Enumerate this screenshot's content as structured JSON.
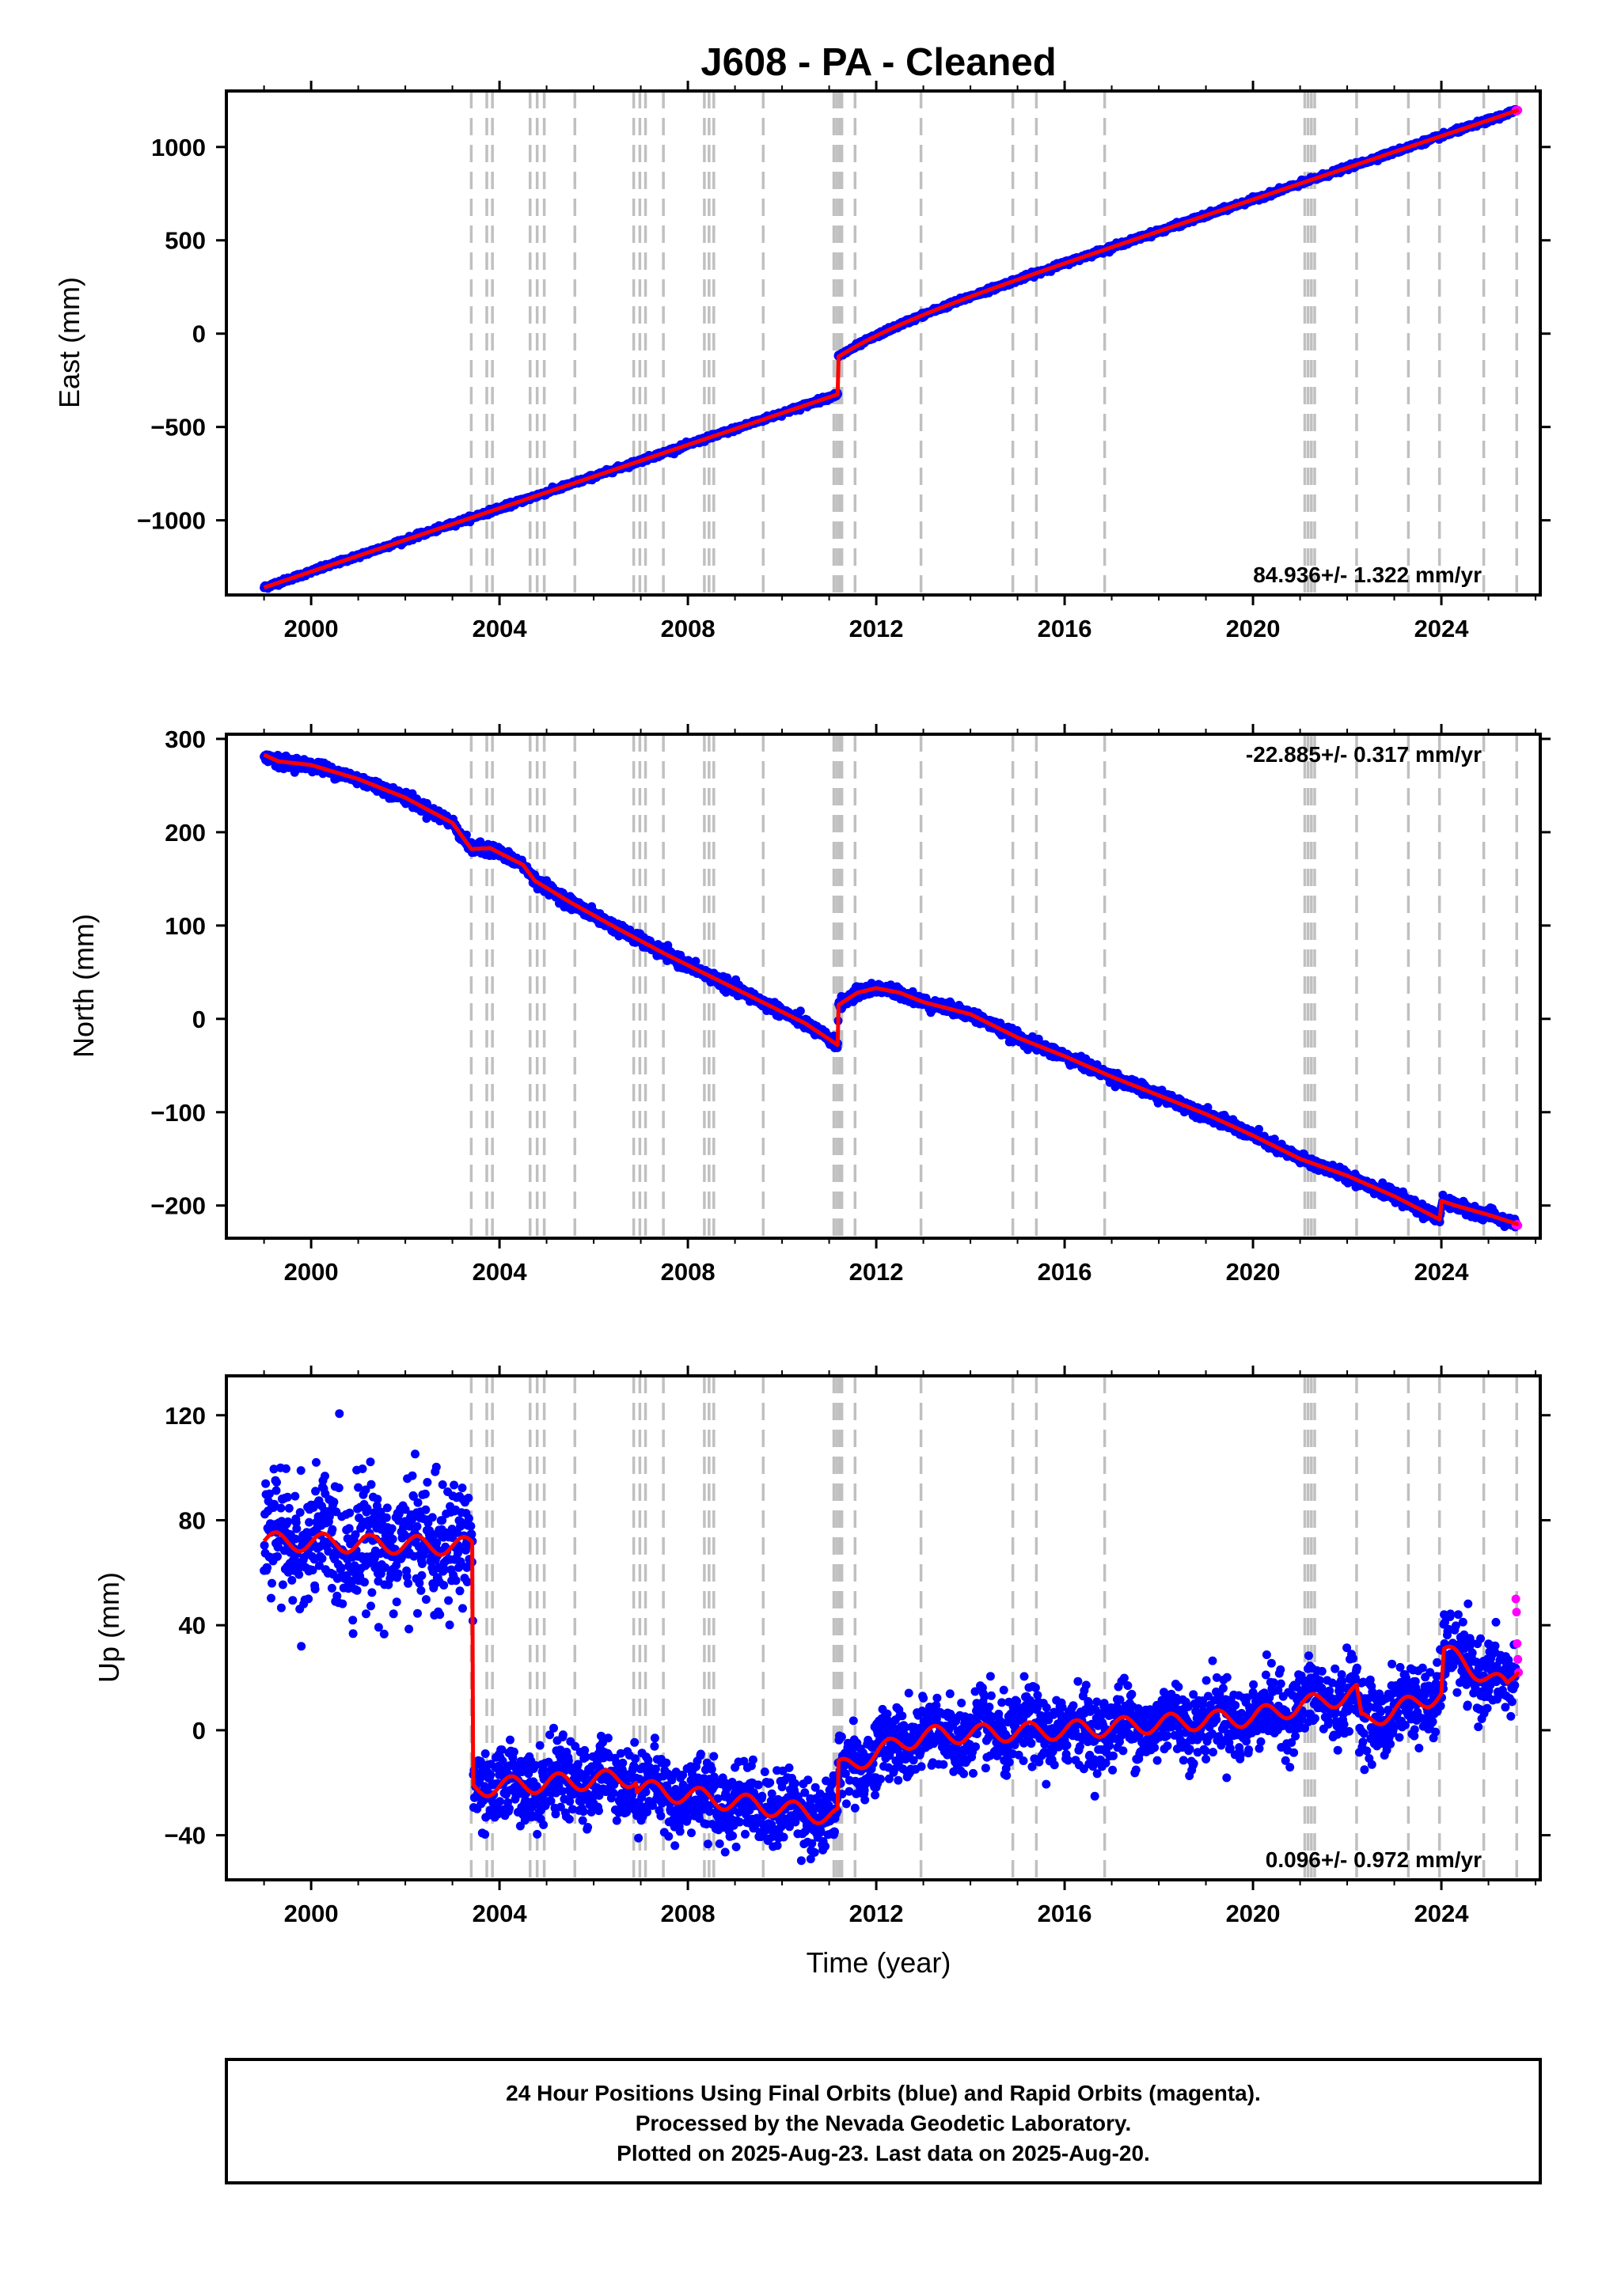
{
  "page": {
    "title": "J608  - PA - Cleaned",
    "xlabel": "Time (year)"
  },
  "colors": {
    "final_orbits": "#0000ff",
    "rapid_orbits": "#ff00ff",
    "model": "#ff0000",
    "event_lines": "#c0c0c0",
    "frame": "#000000"
  },
  "chart_data": [
    {
      "type": "scatter",
      "panel": "east",
      "ylabel": "East (mm)",
      "xlim": [
        1998.2,
        2026.1
      ],
      "ylim": [
        -1400,
        1300
      ],
      "xticks": [
        2000,
        2004,
        2008,
        2012,
        2016,
        2020,
        2024
      ],
      "xtick_labels": [
        "2000",
        "2004",
        "2008",
        "2012",
        "2016",
        "2020",
        "2024"
      ],
      "yticks": [
        -1000,
        -500,
        0,
        500,
        1000
      ],
      "ytick_labels": [
        "−1000",
        "−500",
        "0",
        "500",
        "1000"
      ],
      "rate_label": "84.936+/- 1.322 mm/yr",
      "rate_position": "bottom-right",
      "trend": {
        "start_year": 1999.0,
        "rate_mm_per_yr": 84.936,
        "intercept_mm": -1360
      },
      "step": {
        "year": 2011.19,
        "offset_mm": 200
      },
      "postseismic": {
        "year": 2011.19,
        "amplitude_mm": 95,
        "tau_yr": 1.3
      },
      "series": [
        {
          "name": "Final Orbits",
          "color": "#0000ff",
          "x_range": [
            1999.0,
            2025.58
          ],
          "noise_mm": 6
        },
        {
          "name": "Rapid Orbits",
          "color": "#ff00ff",
          "x_range": [
            2025.58,
            2025.64
          ],
          "noise_mm": 4
        }
      ],
      "model_x": [
        1999.0,
        2001.0,
        2003.0,
        2005.0,
        2007.0,
        2009.0,
        2011.18,
        2011.2,
        2012.0,
        2014.0,
        2016.0,
        2018.0,
        2020.0,
        2022.0,
        2024.0,
        2025.62
      ],
      "model_y": [
        -1360,
        -1190,
        -1020,
        -850,
        -680,
        -510,
        -440,
        -230,
        -120,
        70,
        280,
        500,
        730,
        950,
        1120,
        1235
      ]
    },
    {
      "type": "scatter",
      "panel": "north",
      "ylabel": "North (mm)",
      "xlim": [
        1998.2,
        2026.1
      ],
      "ylim": [
        -235,
        305
      ],
      "xticks": [
        2000,
        2004,
        2008,
        2012,
        2016,
        2020,
        2024
      ],
      "xtick_labels": [
        "2000",
        "2004",
        "2008",
        "2012",
        "2016",
        "2020",
        "2024"
      ],
      "yticks": [
        -200,
        -100,
        0,
        100,
        200,
        300
      ],
      "ytick_labels": [
        "−200",
        "−100",
        "0",
        "100",
        "200",
        "300"
      ],
      "rate_label": "-22.885+/- 0.317 mm/yr",
      "rate_position": "top-right",
      "model_x": [
        1999.0,
        1999.3,
        2000.0,
        2001.0,
        2002.0,
        2003.0,
        2003.4,
        2003.8,
        2004.5,
        2004.75,
        2005.5,
        2006.5,
        2007.5,
        2008.5,
        2009.5,
        2010.5,
        2011.18,
        2011.2,
        2011.6,
        2012.0,
        2012.5,
        2013.0,
        2014.0,
        2015.0,
        2016.0,
        2017.0,
        2018.0,
        2019.0,
        2020.0,
        2021.0,
        2022.0,
        2023.0,
        2023.97,
        2024.0,
        2024.3,
        2025.0,
        2025.62
      ],
      "model_y": [
        283,
        276,
        272,
        257,
        237,
        210,
        182,
        183,
        165,
        148,
        125,
        97,
        70,
        45,
        20,
        -5,
        -28,
        15,
        28,
        33,
        28,
        18,
        5,
        -20,
        -40,
        -62,
        -82,
        -102,
        -125,
        -150,
        -168,
        -190,
        -215,
        -195,
        -200,
        -210,
        -220
      ],
      "series": [
        {
          "name": "Final Orbits",
          "color": "#0000ff",
          "x_range": [
            1999.0,
            2025.58
          ],
          "noise_mm": 3
        },
        {
          "name": "Rapid Orbits",
          "color": "#ff00ff",
          "x_range": [
            2025.58,
            2025.64
          ],
          "noise_mm": 2
        }
      ]
    },
    {
      "type": "scatter",
      "panel": "up",
      "ylabel": "Up (mm)",
      "xlim": [
        1998.2,
        2026.1
      ],
      "ylim": [
        -57,
        135
      ],
      "xticks": [
        2000,
        2004,
        2008,
        2012,
        2016,
        2020,
        2024
      ],
      "xtick_labels": [
        "2000",
        "2004",
        "2008",
        "2012",
        "2016",
        "2020",
        "2024"
      ],
      "yticks": [
        -40,
        0,
        40,
        80,
        120
      ],
      "ytick_labels": [
        "−40",
        "0",
        "40",
        "80",
        "120"
      ],
      "rate_label": "0.096+/- 0.972 mm/yr",
      "rate_position": "bottom-right",
      "model_x": [
        1999.0,
        2003.43,
        2003.44,
        2006.9,
        2006.91,
        2011.18,
        2011.2,
        2012.5,
        2013.0,
        2016.0,
        2020.0,
        2021.2,
        2022.2,
        2022.3,
        2024.0,
        2024.05,
        2025.4,
        2025.62
      ],
      "model_y": [
        72,
        70,
        -22,
        -18,
        -22,
        -33,
        -15,
        -5,
        -2,
        0,
        5,
        10,
        14,
        3,
        14,
        30,
        16,
        24
      ],
      "seasonal_amplitude_mm": 3.5,
      "series": [
        {
          "name": "Final Orbits",
          "color": "#0000ff",
          "x_range": [
            1999.0,
            2025.58
          ],
          "noise_early_mm": 12,
          "noise_late_mm": 7
        },
        {
          "name": "Rapid Orbits",
          "color": "#ff00ff",
          "x_range": [
            2025.58,
            2025.64
          ],
          "values": [
            50,
            45,
            33,
            27,
            22
          ]
        }
      ]
    }
  ],
  "event_lines": [
    2003.4,
    2003.73,
    2003.85,
    2004.65,
    2004.8,
    2004.95,
    2005.6,
    2006.85,
    2006.98,
    2007.1,
    2007.48,
    2008.35,
    2008.45,
    2008.55,
    2009.6,
    2011.1,
    2011.16,
    2011.22,
    2011.27,
    2011.55,
    2012.95,
    2014.9,
    2015.4,
    2016.85,
    2021.1,
    2021.17,
    2021.24,
    2021.31,
    2022.2,
    2023.3,
    2023.96,
    2024.9,
    2025.6
  ],
  "footer": {
    "line1": "24 Hour Positions Using Final Orbits (blue) and Rapid Orbits (magenta).",
    "line2": "Processed by the Nevada Geodetic Laboratory.",
    "line3": "Plotted on 2025-Aug-23. Last data on 2025-Aug-20."
  }
}
